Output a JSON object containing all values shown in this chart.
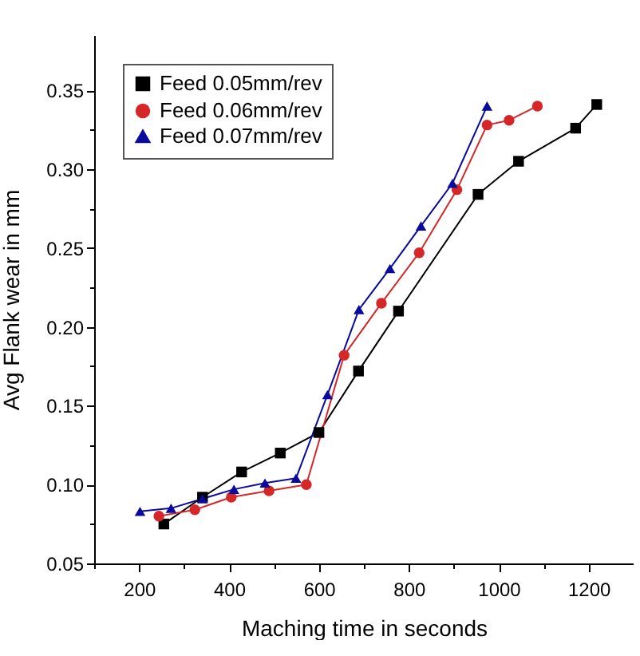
{
  "chart_data": {
    "type": "line",
    "xlabel": "Maching time in seconds",
    "ylabel": "Avg Flank wear in mm",
    "xlim": [
      100,
      1300
    ],
    "ylim": [
      0.05,
      0.385
    ],
    "xticks": [
      {
        "value": 100,
        "label": null
      },
      200,
      {
        "value": 300,
        "label": null
      },
      400,
      {
        "value": 500,
        "label": null
      },
      600,
      {
        "value": 700,
        "label": null
      },
      800,
      {
        "value": 900,
        "label": null
      },
      1000,
      {
        "value": 1100,
        "label": null
      },
      1200
    ],
    "yticks": [
      {
        "value": 0.05,
        "label": "0.05"
      },
      {
        "value": 0.075,
        "label": null
      },
      {
        "value": 0.1,
        "label": "0.10"
      },
      {
        "value": 0.125,
        "label": null
      },
      {
        "value": 0.15,
        "label": "0.15"
      },
      {
        "value": 0.175,
        "label": null
      },
      {
        "value": 0.2,
        "label": "0.20"
      },
      {
        "value": 0.225,
        "label": null
      },
      {
        "value": 0.25,
        "label": "0.25"
      },
      {
        "value": 0.275,
        "label": null
      },
      {
        "value": 0.3,
        "label": "0.30"
      },
      {
        "value": 0.325,
        "label": null
      },
      {
        "value": 0.35,
        "label": "0.35"
      }
    ],
    "grid": false,
    "legend": "top left",
    "series": [
      {
        "name": "Feed 0.05mm/rev",
        "color": "#000000",
        "marker": "square",
        "x": [
          255,
          341,
          428,
          514,
          600,
          688,
          777,
          954,
          1044,
          1171,
          1218
        ],
        "values": [
          0.075,
          0.092,
          0.108,
          0.12,
          0.133,
          0.172,
          0.21,
          0.284,
          0.305,
          0.326,
          0.341
        ]
      },
      {
        "name": "Feed 0.06mm/rev",
        "color": "#d62728",
        "marker": "circle",
        "x": [
          244,
          324,
          405,
          489,
          572,
          656,
          739,
          823,
          907,
          974,
          1023,
          1086
        ],
        "values": [
          0.08,
          0.084,
          0.092,
          0.096,
          0.1,
          0.182,
          0.215,
          0.247,
          0.287,
          0.328,
          0.331,
          0.34
        ]
      },
      {
        "name": "Feed 0.07mm/rev",
        "color": "#0a0a9c",
        "marker": "triangle",
        "x": [
          202,
          271,
          341,
          411,
          480,
          549,
          619,
          689,
          758,
          827,
          897,
          974
        ],
        "values": [
          0.083,
          0.085,
          0.091,
          0.097,
          0.101,
          0.104,
          0.157,
          0.211,
          0.237,
          0.264,
          0.291,
          0.34
        ]
      }
    ]
  }
}
